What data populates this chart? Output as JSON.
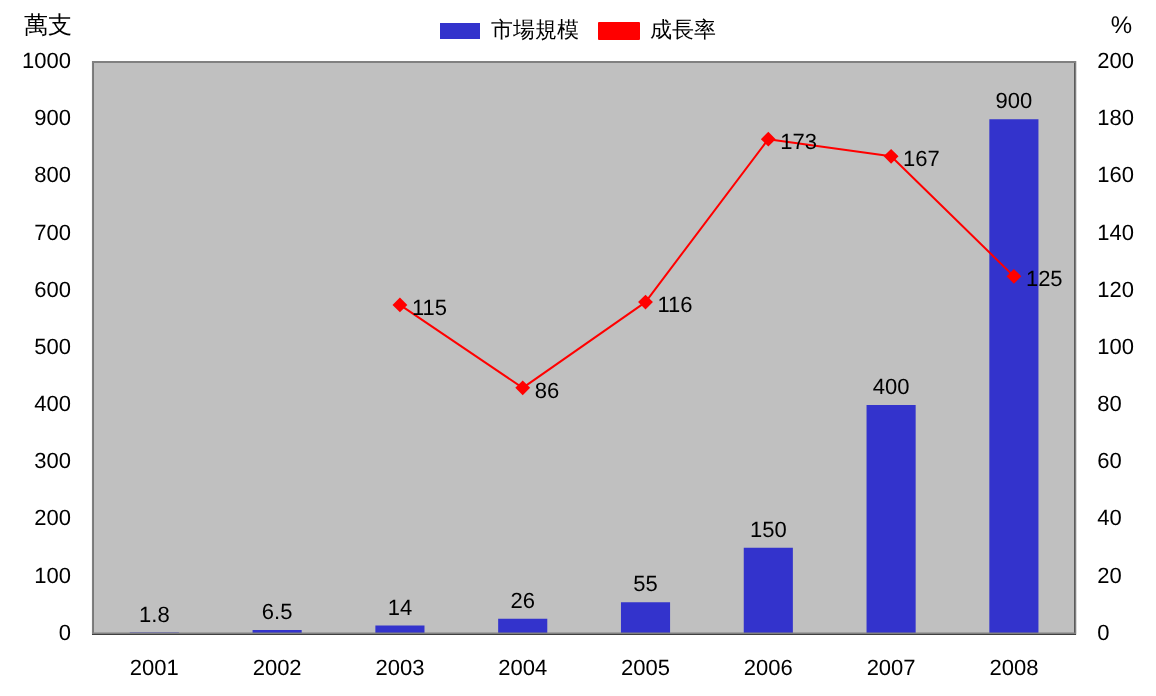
{
  "chart_data": {
    "type": "bar",
    "categories": [
      "2001",
      "2002",
      "2003",
      "2004",
      "2005",
      "2006",
      "2007",
      "2008"
    ],
    "ylabel": "萬支",
    "y2label": "%",
    "series": [
      {
        "name": "市場規模",
        "color": "#3333cc",
        "values": [
          1.8,
          6.5,
          14,
          26,
          55,
          150,
          400,
          900
        ]
      },
      {
        "name": "成長率",
        "type": "line",
        "axis": "y2",
        "color": "#ff0000",
        "marker": "diamond",
        "line_style": "solid",
        "values": [
          null,
          null,
          115,
          86,
          116,
          173,
          167,
          125
        ]
      }
    ],
    "ylim": [
      0,
      1000
    ],
    "yticks": [
      0,
      100,
      200,
      300,
      400,
      500,
      600,
      700,
      800,
      900,
      1000
    ],
    "y2lim": [
      0,
      200
    ],
    "y2ticks": [
      0,
      20,
      40,
      60,
      80,
      100,
      120,
      140,
      160,
      180,
      200
    ],
    "grid": false,
    "legend": "top",
    "data_labels": true
  }
}
